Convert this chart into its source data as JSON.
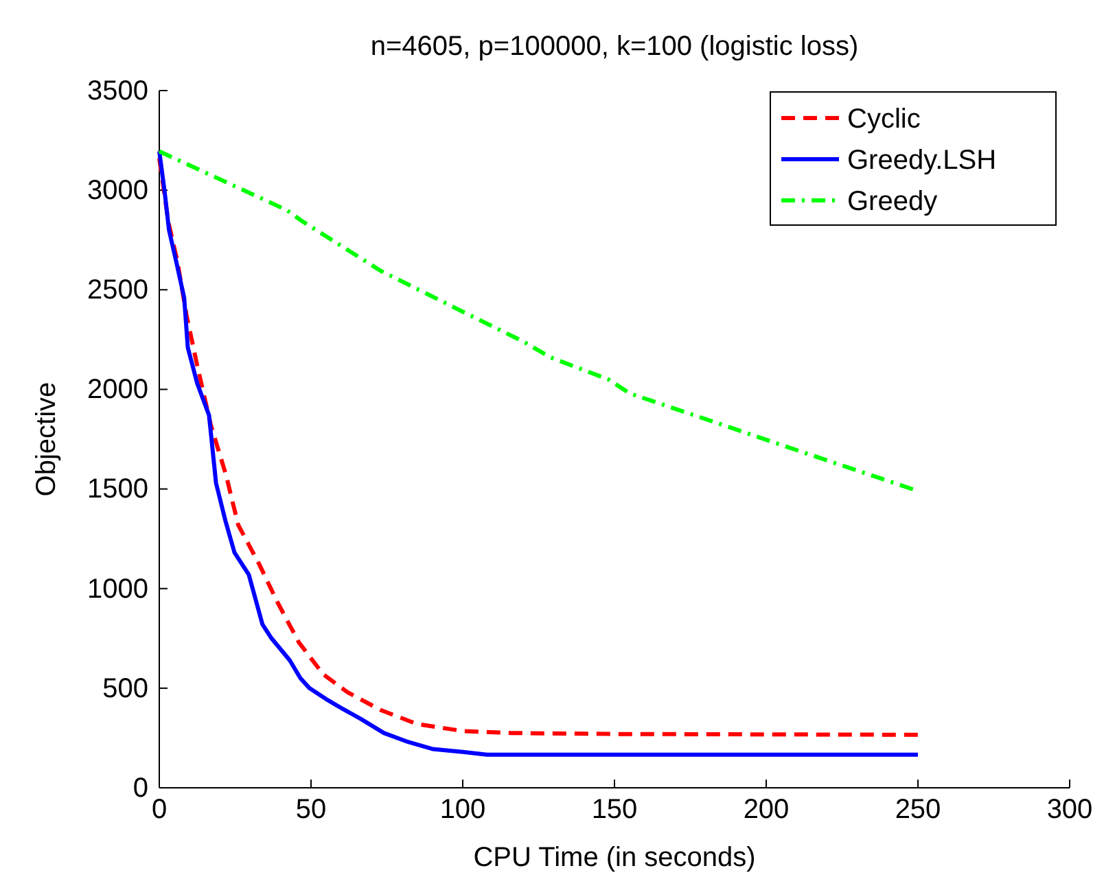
{
  "chart_data": {
    "type": "line",
    "title": "n=4605, p=100000, k=100 (logistic loss)",
    "xlabel": "CPU Time (in seconds)",
    "ylabel": "Objective",
    "xlim": [
      0,
      300
    ],
    "xticks": [
      0,
      50,
      100,
      150,
      200,
      250,
      300
    ],
    "ylim": [
      0,
      3500
    ],
    "yticks": [
      0,
      500,
      1000,
      1500,
      2000,
      2500,
      3000,
      3500
    ],
    "grid": false,
    "legend": "top right",
    "marker": "none",
    "series": [
      {
        "name": "Cyclic",
        "color": "#ff0000",
        "line_style": "dashed",
        "x": [
          0,
          3,
          6,
          9,
          12.5,
          17,
          22,
          26,
          33,
          39,
          46,
          54,
          62,
          73,
          85,
          100,
          116,
          150,
          200,
          250
        ],
        "values": [
          3160,
          2840,
          2640,
          2370,
          2120,
          1820,
          1570,
          1320,
          1120,
          930,
          730,
          570,
          480,
          390,
          320,
          285,
          275,
          270,
          268,
          266
        ]
      },
      {
        "name": "Greedy.LSH",
        "color": "#0000ff",
        "line_style": "solid",
        "x": [
          0,
          1.7,
          3.2,
          5.6,
          8.2,
          9.4,
          12.5,
          16.4,
          18.7,
          21.8,
          24.8,
          29.5,
          34,
          37,
          43,
          46.5,
          49.5,
          55,
          60,
          66.5,
          74,
          82,
          90,
          100,
          108,
          150,
          200,
          250
        ],
        "values": [
          3195,
          3000,
          2800,
          2640,
          2460,
          2210,
          2030,
          1870,
          1530,
          1340,
          1180,
          1070,
          820,
          750,
          640,
          550,
          500,
          445,
          400,
          345,
          275,
          230,
          195,
          180,
          166,
          166,
          166,
          166
        ]
      },
      {
        "name": "Greedy",
        "color": "#00ff00",
        "line_style": "dashdot",
        "x": [
          0,
          42,
          47,
          73,
          100,
          120,
          129,
          148,
          155,
          186,
          212,
          250
        ],
        "values": [
          3195,
          2900,
          2845,
          2595,
          2390,
          2240,
          2160,
          2050,
          1980,
          1820,
          1685,
          1490
        ]
      }
    ]
  }
}
